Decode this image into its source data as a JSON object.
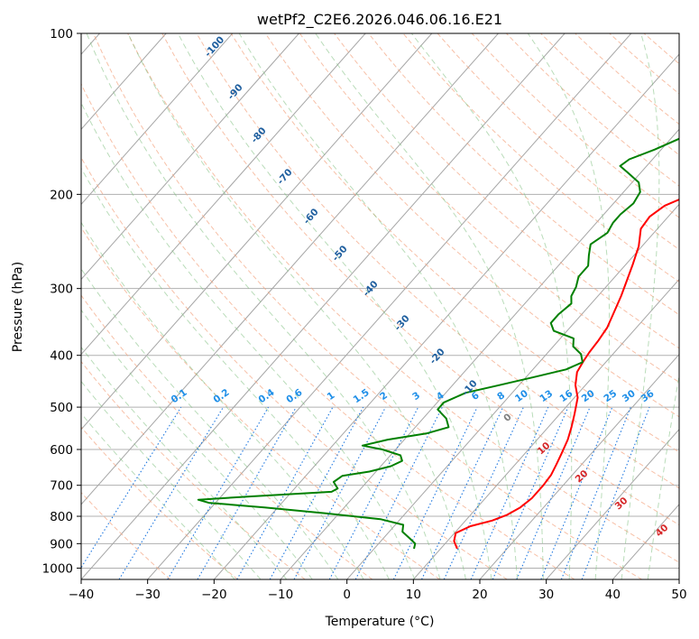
{
  "chart_data": {
    "type": "line",
    "title": "wetPf2_C2E6.2026.046.06.16.E21",
    "xlabel": "Temperature (°C)",
    "ylabel": "Pressure (hPa)",
    "xlim": [
      -40,
      50
    ],
    "ylim": [
      1050,
      100
    ],
    "y_scale": "log",
    "grid": true,
    "x_ticks": [
      "−40",
      "−30",
      "−20",
      "−10",
      "0",
      "10",
      "20",
      "30",
      "40",
      "50"
    ],
    "x_tick_values": [
      -40,
      -30,
      -20,
      -10,
      0,
      10,
      20,
      30,
      40,
      50
    ],
    "y_ticks": [
      "100",
      "200",
      "300",
      "400",
      "500",
      "600",
      "700",
      "800",
      "900",
      "1000"
    ],
    "y_tick_values": [
      100,
      200,
      300,
      400,
      500,
      600,
      700,
      800,
      900,
      1000
    ],
    "series": [
      {
        "color": "#ff0000",
        "points": [
          [
            920,
            12.5
          ],
          [
            890,
            11.0
          ],
          [
            860,
            10.2
          ],
          [
            835,
            11.5
          ],
          [
            815,
            14.0
          ],
          [
            795,
            15.5
          ],
          [
            770,
            16.5
          ],
          [
            740,
            17.0
          ],
          [
            700,
            17.0
          ],
          [
            670,
            16.8
          ],
          [
            640,
            16.2
          ],
          [
            610,
            15.5
          ],
          [
            575,
            14.6
          ],
          [
            545,
            13.5
          ],
          [
            515,
            12.2
          ],
          [
            480,
            10.5
          ],
          [
            455,
            8.5
          ],
          [
            430,
            7.0
          ],
          [
            410,
            6.5
          ],
          [
            395,
            6.2
          ],
          [
            375,
            6.0
          ],
          [
            355,
            5.6
          ],
          [
            335,
            4.7
          ],
          [
            310,
            3.5
          ],
          [
            290,
            2.3
          ],
          [
            270,
            1.0
          ],
          [
            250,
            -0.5
          ],
          [
            232,
            -2.5
          ],
          [
            220,
            -2.8
          ],
          [
            210,
            -2.0
          ],
          [
            200,
            0.5
          ],
          [
            193,
            3.5
          ],
          [
            185,
            6.0
          ],
          [
            175,
            7.3
          ],
          [
            165,
            7.8
          ],
          [
            150,
            8.0
          ],
          [
            140,
            8.8
          ],
          [
            130,
            9.5
          ],
          [
            122,
            10.0
          ],
          [
            114,
            11.0
          ],
          [
            108,
            12.3
          ],
          [
            103,
            13.0
          ],
          [
            100,
            13.5
          ]
        ]
      },
      {
        "color": "#008000",
        "points": [
          [
            920,
            6.0
          ],
          [
            900,
            5.5
          ],
          [
            880,
            4.0
          ],
          [
            855,
            2.0
          ],
          [
            830,
            1.2
          ],
          [
            810,
            -3.0
          ],
          [
            790,
            -12.0
          ],
          [
            770,
            -22.0
          ],
          [
            755,
            -31.0
          ],
          [
            745,
            -33.0
          ],
          [
            735,
            -26.0
          ],
          [
            720,
            -14.0
          ],
          [
            710,
            -13.5
          ],
          [
            690,
            -15.0
          ],
          [
            672,
            -14.5
          ],
          [
            660,
            -11.0
          ],
          [
            645,
            -8.5
          ],
          [
            630,
            -7.5
          ],
          [
            615,
            -8.5
          ],
          [
            600,
            -12.0
          ],
          [
            590,
            -15.5
          ],
          [
            575,
            -12.5
          ],
          [
            560,
            -7.5
          ],
          [
            545,
            -5.0
          ],
          [
            525,
            -6.5
          ],
          [
            505,
            -9.0
          ],
          [
            490,
            -9.0
          ],
          [
            470,
            -7.0
          ],
          [
            455,
            -3.0
          ],
          [
            440,
            1.0
          ],
          [
            425,
            5.0
          ],
          [
            412,
            6.5
          ],
          [
            398,
            5.2
          ],
          [
            385,
            3.0
          ],
          [
            372,
            2.0
          ],
          [
            360,
            -2.0
          ],
          [
            348,
            -3.5
          ],
          [
            335,
            -3.5
          ],
          [
            320,
            -3.0
          ],
          [
            310,
            -4.0
          ],
          [
            298,
            -4.5
          ],
          [
            285,
            -5.5
          ],
          [
            272,
            -5.5
          ],
          [
            260,
            -6.8
          ],
          [
            248,
            -8.0
          ],
          [
            236,
            -7.0
          ],
          [
            226,
            -7.5
          ],
          [
            218,
            -7.5
          ],
          [
            208,
            -7.0
          ],
          [
            198,
            -7.5
          ],
          [
            190,
            -9.0
          ],
          [
            182,
            -12.0
          ],
          [
            177,
            -14.0
          ],
          [
            172,
            -13.5
          ],
          [
            165,
            -11.0
          ],
          [
            155,
            -8.0
          ],
          [
            145,
            -6.0
          ],
          [
            135,
            -3.5
          ],
          [
            125,
            -1.0
          ],
          [
            116,
            1.5
          ],
          [
            108,
            3.5
          ],
          [
            102,
            5.5
          ],
          [
            100,
            6.0
          ]
        ]
      }
    ],
    "dry_adiabat_labels": [
      "-100",
      "-90",
      "-80",
      "-70",
      "-60",
      "-50",
      "-40",
      "-30",
      "-20",
      "-10"
    ],
    "mixing_ratio_labels": [
      "0.1",
      "0.2",
      "0.4",
      "0.6",
      "1",
      "1.5",
      "2",
      "3",
      "4",
      "6",
      "8",
      "10",
      "13",
      "16",
      "20",
      "25",
      "30",
      "36"
    ],
    "moist_adiabat_labels": [
      "0",
      "10",
      "20",
      "30",
      "40"
    ],
    "colors": {
      "temperature": "#ff0000",
      "dewpoint": "#008000",
      "isotherm": "#a6a6a6",
      "dry_adiabat": "#f4a582",
      "moist_adiabat": "#7fbf7f",
      "mixing_ratio": "#1f78e0",
      "dry_adiabat_label": "#1f5f9f",
      "mixing_label": "#1f8fe8",
      "moist_label": "#d62728",
      "zero_label": "#7f7f7f",
      "pressure_grid": "#b0b0b0"
    }
  }
}
